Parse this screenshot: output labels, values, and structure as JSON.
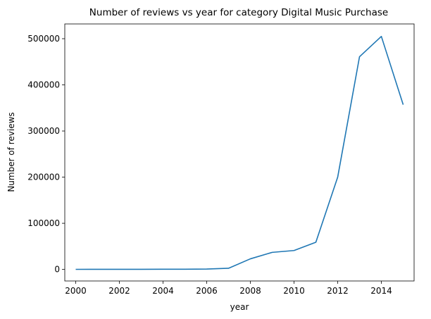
{
  "chart_data": {
    "type": "line",
    "title": "Number of reviews vs year for category Digital Music Purchase",
    "xlabel": "year",
    "ylabel": "Number of reviews",
    "xlim": [
      1999.5,
      2015.5
    ],
    "ylim": [
      -25000,
      532000
    ],
    "xticks": [
      2000,
      2002,
      2004,
      2006,
      2008,
      2010,
      2012,
      2014
    ],
    "yticks": [
      0,
      100000,
      200000,
      300000,
      400000,
      500000
    ],
    "grid": false,
    "series": [
      {
        "color": "#1f77b4",
        "x": [
          2000,
          2001,
          2002,
          2003,
          2004,
          2005,
          2006,
          2007,
          2008,
          2009,
          2010,
          2011,
          2012,
          2013,
          2014,
          2015
        ],
        "y": [
          200,
          250,
          300,
          300,
          400,
          500,
          800,
          2500,
          23000,
          37000,
          41000,
          59000,
          200000,
          461000,
          505000,
          357000
        ]
      }
    ]
  }
}
